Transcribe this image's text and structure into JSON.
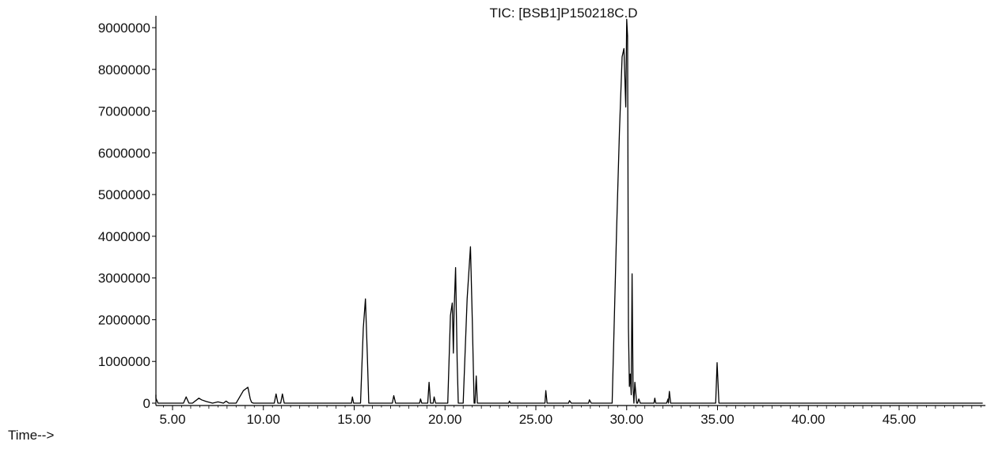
{
  "chart_data": {
    "type": "line",
    "title": "TIC: [BSB1]P150218C.D",
    "xlabel": "Time-->",
    "ylabel": "",
    "xlim": [
      3.8,
      49.6
    ],
    "ylim": [
      0,
      9500000
    ],
    "x_ticks": [
      5,
      10,
      15,
      20,
      25,
      30,
      35,
      40,
      45
    ],
    "x_tick_labels": [
      "5.00",
      "10.00",
      "15.00",
      "20.00",
      "25.00",
      "30.00",
      "35.00",
      "40.00",
      "45.00"
    ],
    "y_ticks": [
      0,
      1000000,
      2000000,
      3000000,
      4000000,
      5000000,
      6000000,
      7000000,
      8000000,
      9000000
    ],
    "y_tick_labels": [
      "0",
      "1000000",
      "2000000",
      "3000000",
      "4000000",
      "5000000",
      "6000000",
      "7000000",
      "8000000",
      "9000000"
    ],
    "grid": false,
    "legend": "none",
    "series": [
      {
        "color": "#000000",
        "x": [
          3.8,
          4.05,
          4.2,
          4.35,
          5.6,
          5.75,
          5.9,
          6.1,
          6.45,
          6.6,
          6.85,
          7.2,
          7.5,
          7.8,
          7.95,
          8.1,
          8.5,
          8.9,
          9.15,
          9.28,
          9.35,
          9.45,
          10.6,
          10.7,
          10.8,
          10.95,
          11.05,
          11.15,
          14.85,
          14.9,
          14.97,
          15.35,
          15.5,
          15.62,
          15.72,
          15.8,
          17.1,
          17.18,
          17.28,
          18.6,
          18.65,
          18.72,
          19.05,
          19.12,
          19.2,
          19.35,
          19.4,
          19.48,
          20.15,
          20.3,
          20.4,
          20.46,
          20.5,
          20.58,
          20.67,
          20.73,
          20.77,
          20.85,
          21.0,
          21.22,
          21.4,
          21.5,
          21.6,
          21.65,
          21.72,
          21.78,
          21.85,
          22.0,
          23.5,
          23.55,
          23.6,
          25.5,
          25.55,
          25.62,
          26.8,
          26.85,
          26.95,
          27.9,
          27.95,
          28.05,
          29.2,
          29.45,
          29.6,
          29.75,
          29.85,
          29.95,
          30.0,
          30.05,
          30.1,
          30.15,
          30.2,
          30.25,
          30.3,
          30.35,
          30.4,
          30.45,
          30.55,
          30.6,
          30.67,
          30.75,
          31.5,
          31.55,
          31.6,
          32.1,
          32.2,
          32.28,
          32.3,
          32.35,
          32.42,
          34.8,
          34.9,
          34.98,
          35.08,
          35.2,
          36.0,
          38.0,
          40.0,
          45.0,
          49.6
        ],
        "y": [
          200000,
          120000,
          0,
          0,
          0,
          150000,
          0,
          0,
          120000,
          80000,
          40000,
          0,
          30000,
          0,
          50000,
          0,
          0,
          300000,
          380000,
          100000,
          20000,
          0,
          0,
          220000,
          0,
          0,
          220000,
          0,
          0,
          150000,
          0,
          0,
          1800000,
          2500000,
          1200000,
          0,
          0,
          180000,
          0,
          0,
          100000,
          0,
          0,
          500000,
          0,
          0,
          150000,
          0,
          0,
          2100000,
          2400000,
          1200000,
          2200000,
          3250000,
          1000000,
          0,
          0,
          0,
          0,
          2500000,
          3750000,
          2000000,
          0,
          0,
          650000,
          0,
          0,
          0,
          0,
          50000,
          0,
          0,
          300000,
          0,
          0,
          60000,
          0,
          0,
          80000,
          0,
          0,
          4200000,
          6500000,
          8300000,
          8500000,
          7100000,
          9200000,
          8800000,
          1800000,
          400000,
          700000,
          200000,
          3100000,
          400000,
          0,
          500000,
          0,
          0,
          100000,
          0,
          0,
          120000,
          0,
          0,
          0,
          100000,
          0,
          280000,
          0,
          0,
          0,
          970000,
          0,
          0,
          0,
          0,
          0,
          0,
          0
        ]
      }
    ]
  }
}
